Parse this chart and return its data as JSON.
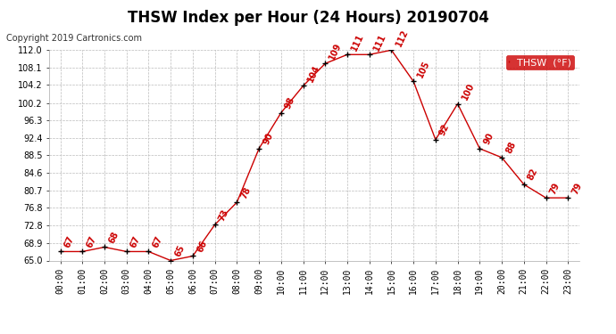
{
  "title": "THSW Index per Hour (24 Hours) 20190704",
  "copyright": "Copyright 2019 Cartronics.com",
  "legend_label": "THSW  (°F)",
  "hours": [
    0,
    1,
    2,
    3,
    4,
    5,
    6,
    7,
    8,
    9,
    10,
    11,
    12,
    13,
    14,
    15,
    16,
    17,
    18,
    19,
    20,
    21,
    22,
    23
  ],
  "values": [
    67,
    67,
    68,
    67,
    67,
    65,
    66,
    73,
    78,
    90,
    98,
    104,
    109,
    111,
    111,
    112,
    105,
    92,
    100,
    90,
    88,
    82,
    79,
    79
  ],
  "ylim": [
    65.0,
    112.0
  ],
  "yticks": [
    65.0,
    68.9,
    72.8,
    76.8,
    80.7,
    84.6,
    88.5,
    92.4,
    96.3,
    100.2,
    104.2,
    108.1,
    112.0
  ],
  "line_color": "#cc0000",
  "marker_color": "#000000",
  "background_color": "#ffffff",
  "grid_color": "#bbbbbb",
  "title_fontsize": 12,
  "copyright_fontsize": 7,
  "label_fontsize": 7,
  "annotation_fontsize": 7,
  "legend_bg": "#cc0000",
  "legend_text_color": "#ffffff"
}
